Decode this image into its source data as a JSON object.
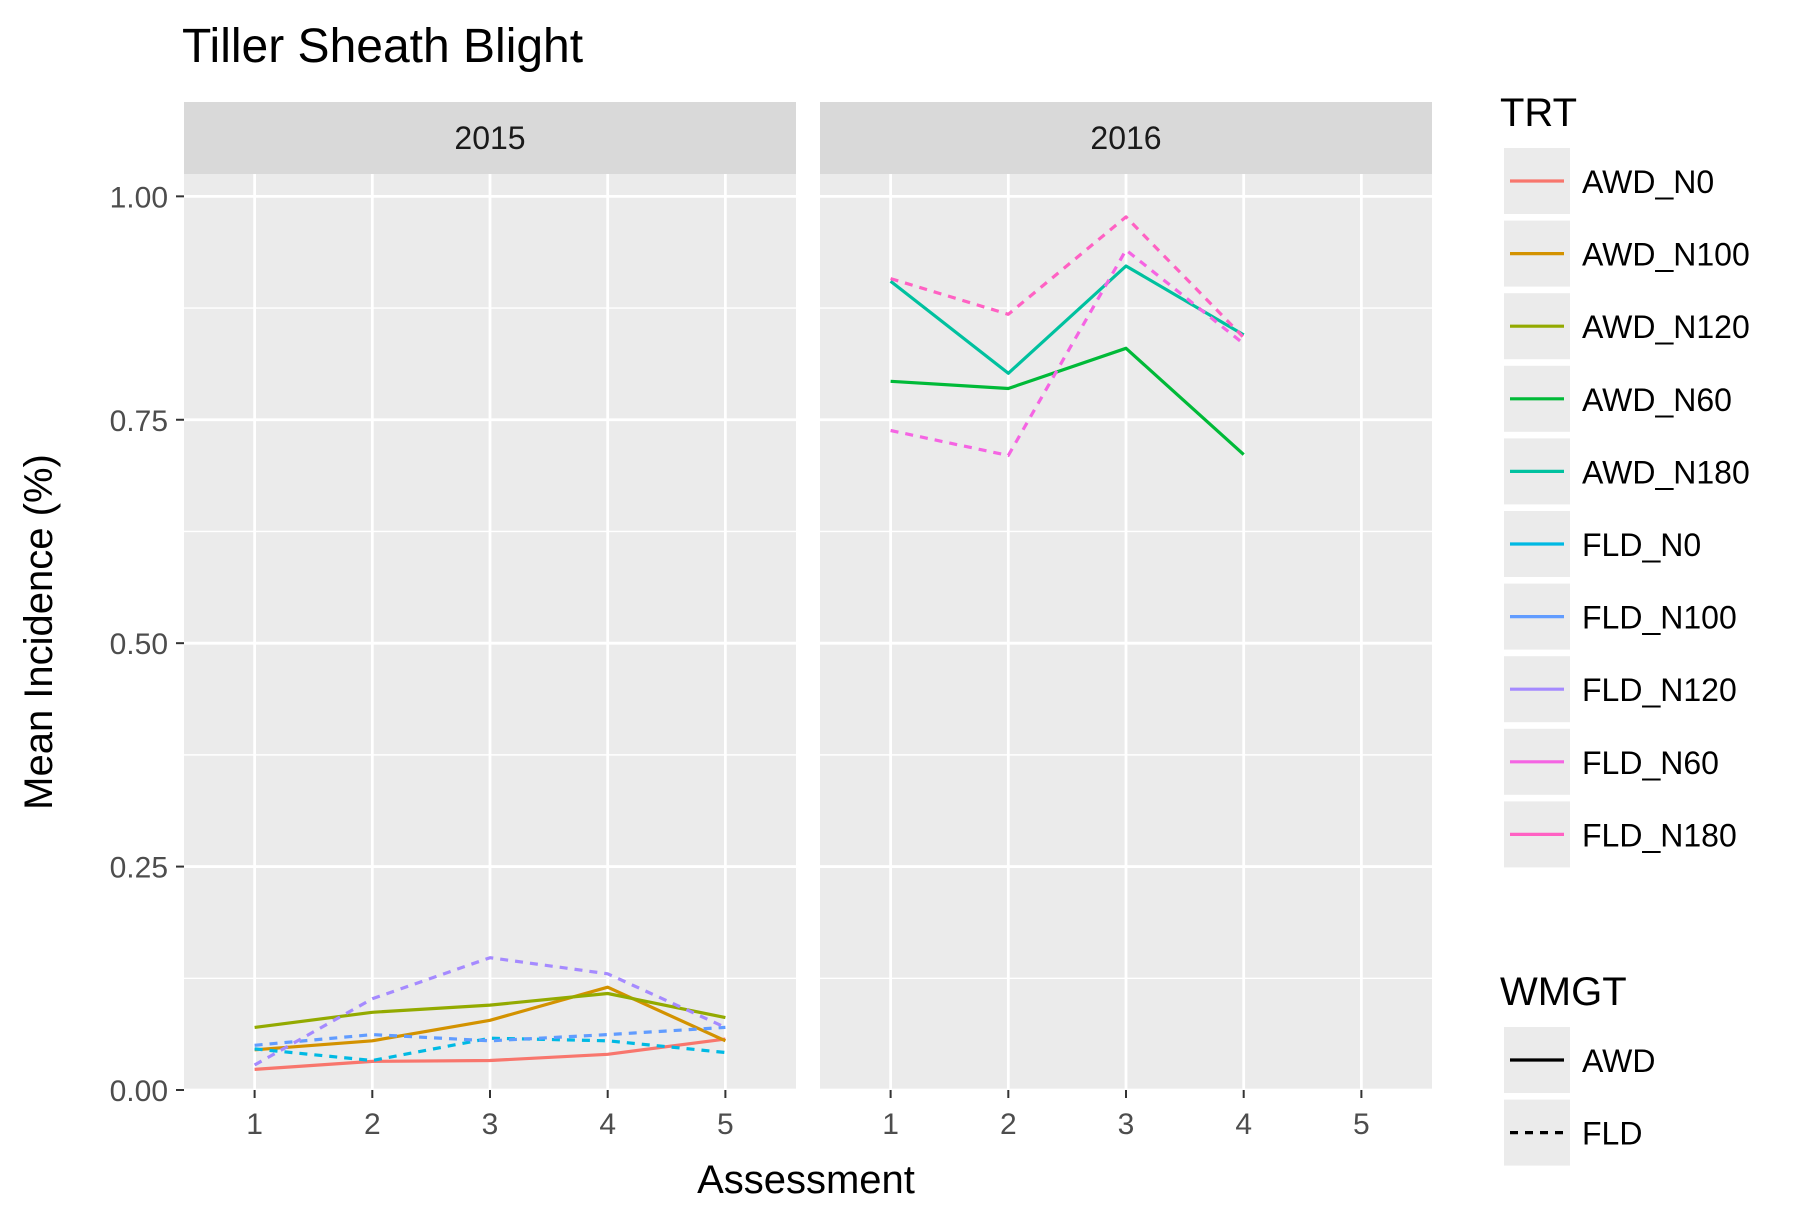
{
  "chart_data": {
    "type": "line",
    "title": "Tiller Sheath Blight",
    "xlabel": "Assessment",
    "ylabel": "Mean Incidence (%)",
    "x_ticks": [
      1,
      2,
      3,
      4,
      5
    ],
    "y_ticks": [
      "0.00",
      "0.25",
      "0.50",
      "0.75",
      "1.00"
    ],
    "xlim": [
      0.4,
      5.6
    ],
    "ylim": [
      0,
      1.025
    ],
    "grid": true,
    "legend_position": "right",
    "legend_trt_title": "TRT",
    "legend_wmgt_title": "WMGT",
    "facets": [
      "2015",
      "2016"
    ],
    "treatments": [
      {
        "name": "AWD_N0",
        "color": "#F8766D",
        "wmgt": "AWD"
      },
      {
        "name": "AWD_N100",
        "color": "#D39200",
        "wmgt": "AWD"
      },
      {
        "name": "AWD_N120",
        "color": "#93AA00",
        "wmgt": "AWD"
      },
      {
        "name": "AWD_N60",
        "color": "#00BA38",
        "wmgt": "AWD"
      },
      {
        "name": "AWD_N180",
        "color": "#00C19F",
        "wmgt": "AWD"
      },
      {
        "name": "FLD_N0",
        "color": "#00B9E3",
        "wmgt": "FLD"
      },
      {
        "name": "FLD_N100",
        "color": "#619CFF",
        "wmgt": "FLD"
      },
      {
        "name": "FLD_N120",
        "color": "#A58AFF",
        "wmgt": "FLD"
      },
      {
        "name": "FLD_N60",
        "color": "#F564E3",
        "wmgt": "FLD"
      },
      {
        "name": "FLD_N180",
        "color": "#FF61C3",
        "wmgt": "FLD"
      }
    ],
    "wmgt": [
      {
        "name": "AWD",
        "linetype": "solid"
      },
      {
        "name": "FLD",
        "linetype": "dashed"
      }
    ],
    "series": [
      {
        "facet": "2015",
        "trt": "AWD_N0",
        "x": [
          1,
          2,
          3,
          4,
          5
        ],
        "y": [
          0.023,
          0.032,
          0.033,
          0.04,
          0.057
        ]
      },
      {
        "facet": "2015",
        "trt": "AWD_N100",
        "x": [
          1,
          2,
          3,
          4,
          5
        ],
        "y": [
          0.045,
          0.055,
          0.078,
          0.115,
          0.055
        ]
      },
      {
        "facet": "2015",
        "trt": "AWD_N120",
        "x": [
          1,
          2,
          3,
          4,
          5
        ],
        "y": [
          0.07,
          0.087,
          0.095,
          0.108,
          0.081
        ]
      },
      {
        "facet": "2015",
        "trt": "FLD_N0",
        "x": [
          1,
          2,
          3,
          4,
          5
        ],
        "y": [
          0.046,
          0.033,
          0.058,
          0.055,
          0.042
        ]
      },
      {
        "facet": "2015",
        "trt": "FLD_N100",
        "x": [
          1,
          2,
          3,
          4,
          5
        ],
        "y": [
          0.05,
          0.062,
          0.055,
          0.062,
          0.07
        ]
      },
      {
        "facet": "2015",
        "trt": "FLD_N120",
        "x": [
          1,
          2,
          3,
          4,
          5
        ],
        "y": [
          0.028,
          0.102,
          0.148,
          0.13,
          0.07
        ]
      },
      {
        "facet": "2016",
        "trt": "AWD_N60",
        "x": [
          1,
          2,
          3,
          4
        ],
        "y": [
          0.793,
          0.785,
          0.83,
          0.711
        ]
      },
      {
        "facet": "2016",
        "trt": "AWD_N180",
        "x": [
          1,
          2,
          3,
          4
        ],
        "y": [
          0.905,
          0.802,
          0.922,
          0.845
        ]
      },
      {
        "facet": "2016",
        "trt": "FLD_N60",
        "x": [
          1,
          2,
          3,
          4
        ],
        "y": [
          0.738,
          0.71,
          0.94,
          0.835
        ]
      },
      {
        "facet": "2016",
        "trt": "FLD_N180",
        "x": [
          1,
          2,
          3,
          4
        ],
        "y": [
          0.908,
          0.868,
          0.977,
          0.842
        ]
      }
    ]
  }
}
